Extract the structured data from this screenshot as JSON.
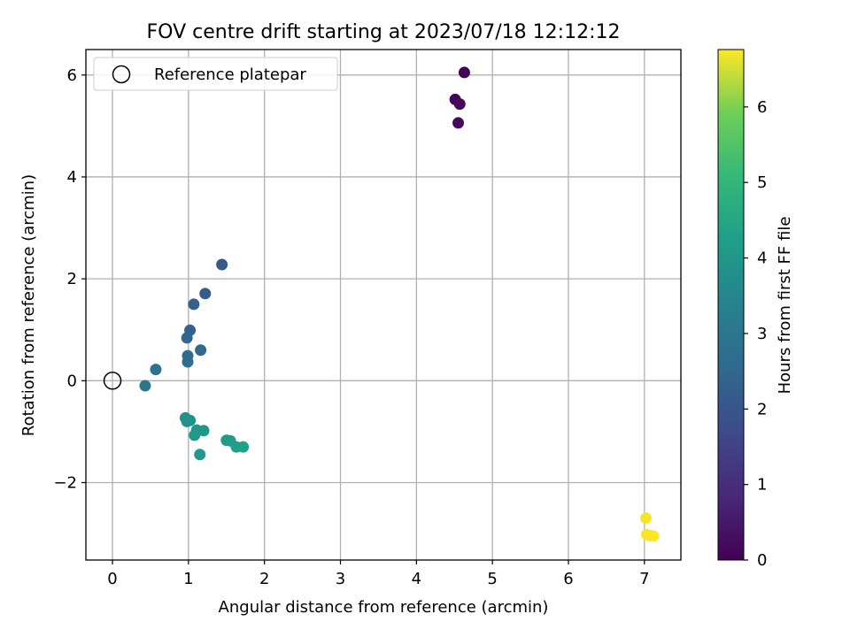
{
  "chart_data": {
    "type": "scatter",
    "title": "FOV centre drift starting at 2023/07/18 12:12:12",
    "xlabel": "Angular distance from reference (arcmin)",
    "ylabel": "Rotation from reference (arcmin)",
    "colorbar_label": "Hours from first FF file",
    "xlim": [
      -0.35,
      7.48
    ],
    "ylim": [
      -3.52,
      6.5
    ],
    "clim": [
      0,
      6.76
    ],
    "x_ticks": [
      0,
      1,
      2,
      3,
      4,
      5,
      6,
      7
    ],
    "y_ticks": [
      -2,
      0,
      2,
      4,
      6
    ],
    "colorbar_ticks": [
      0,
      1,
      2,
      3,
      4,
      5,
      6
    ],
    "grid": true,
    "legend_position": "top-left",
    "colormap": "viridis",
    "reference": {
      "label": "Reference platepar",
      "x": 0,
      "y": 0
    },
    "points": [
      {
        "x": 4.63,
        "y": 6.05,
        "hours": 0.0
      },
      {
        "x": 4.51,
        "y": 5.52,
        "hours": 0.1
      },
      {
        "x": 4.57,
        "y": 5.43,
        "hours": 0.15
      },
      {
        "x": 4.55,
        "y": 5.06,
        "hours": 0.2
      },
      {
        "x": 1.44,
        "y": 2.28,
        "hours": 2.1
      },
      {
        "x": 1.22,
        "y": 1.71,
        "hours": 2.2
      },
      {
        "x": 1.07,
        "y": 1.5,
        "hours": 2.3
      },
      {
        "x": 1.02,
        "y": 0.99,
        "hours": 2.4
      },
      {
        "x": 0.98,
        "y": 0.84,
        "hours": 2.5
      },
      {
        "x": 1.16,
        "y": 0.6,
        "hours": 2.55
      },
      {
        "x": 0.99,
        "y": 0.49,
        "hours": 2.6
      },
      {
        "x": 0.99,
        "y": 0.37,
        "hours": 2.7
      },
      {
        "x": 0.57,
        "y": 0.22,
        "hours": 2.9
      },
      {
        "x": 0.43,
        "y": -0.1,
        "hours": 3.0
      },
      {
        "x": 0.96,
        "y": -0.73,
        "hours": 3.8
      },
      {
        "x": 1.02,
        "y": -0.78,
        "hours": 3.85
      },
      {
        "x": 0.98,
        "y": -0.8,
        "hours": 3.9
      },
      {
        "x": 1.11,
        "y": -0.97,
        "hours": 3.95
      },
      {
        "x": 1.2,
        "y": -0.98,
        "hours": 4.0
      },
      {
        "x": 1.08,
        "y": -1.07,
        "hours": 4.05
      },
      {
        "x": 1.15,
        "y": -1.45,
        "hours": 4.1
      },
      {
        "x": 1.5,
        "y": -1.17,
        "hours": 4.15
      },
      {
        "x": 1.55,
        "y": -1.18,
        "hours": 4.2
      },
      {
        "x": 1.63,
        "y": -1.3,
        "hours": 4.25
      },
      {
        "x": 1.72,
        "y": -1.3,
        "hours": 4.3
      },
      {
        "x": 7.02,
        "y": -2.7,
        "hours": 6.7
      },
      {
        "x": 7.03,
        "y": -3.02,
        "hours": 6.72
      },
      {
        "x": 7.07,
        "y": -3.04,
        "hours": 6.74
      },
      {
        "x": 7.12,
        "y": -3.05,
        "hours": 6.76
      }
    ]
  }
}
